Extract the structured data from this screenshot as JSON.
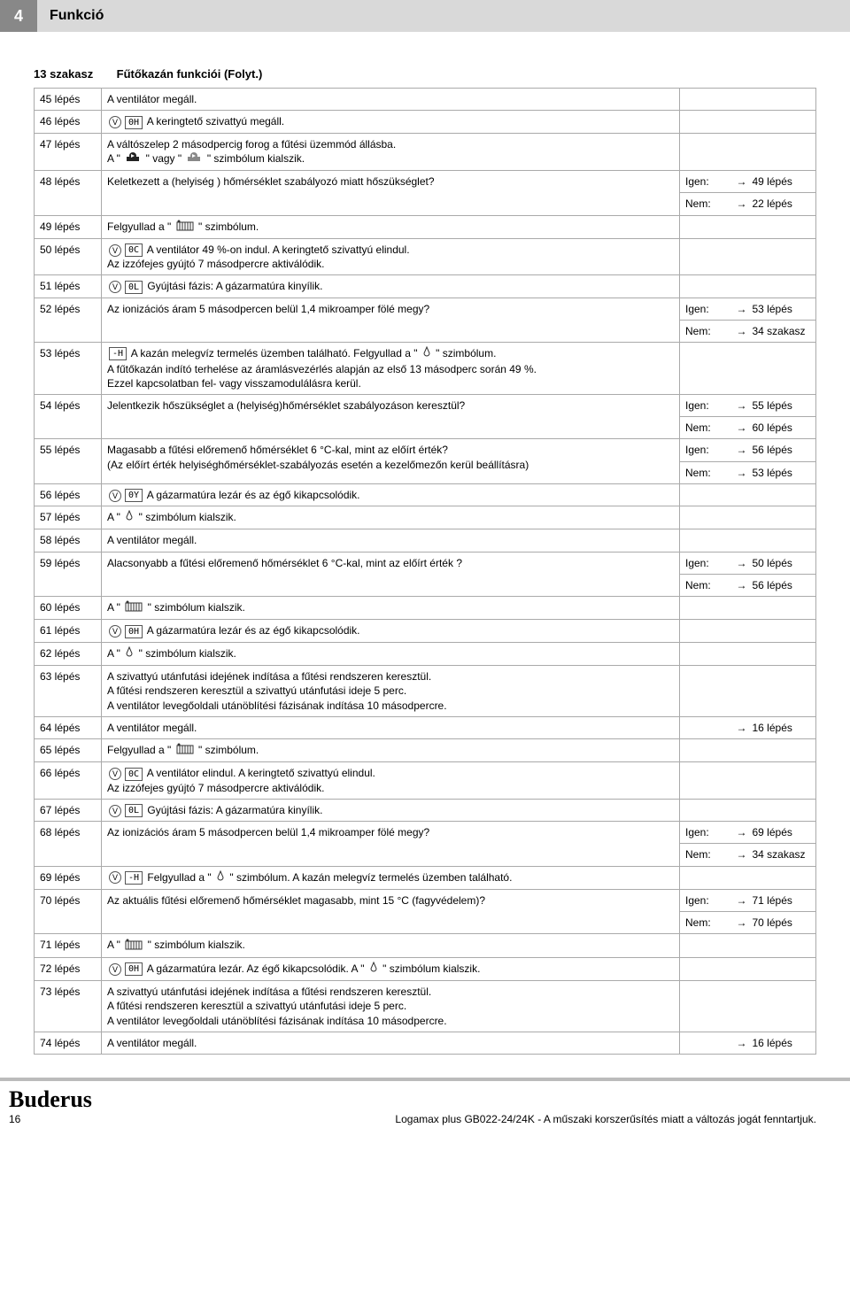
{
  "header": {
    "chapter_num": "4",
    "chapter_title": "Funkció"
  },
  "section": {
    "number": "13 szakasz",
    "title": "Fűtőkazán funkciói (Folyt.)"
  },
  "labels": {
    "yes": "Igen:",
    "no": "Nem:",
    "arrow": "→"
  },
  "symbols": {
    "fan": "V̂",
    "code_0H": "0H",
    "code_0C": "0C",
    "code_0L": "0L",
    "code_0Y": "0Y",
    "code_mH": "-H",
    "pump_black": "pump",
    "pump_grey": "pump",
    "radiator": "rad",
    "drop": "◊"
  },
  "rows": [
    {
      "step": "45 lépés",
      "symbols": [],
      "text": "A ventilátor megáll."
    },
    {
      "step": "46 lépés",
      "symbols": [
        "fan",
        "0H"
      ],
      "text": "A keringtető szivattyú megáll."
    },
    {
      "step": "47 lépés",
      "symbols": [],
      "text": "A váltószelep 2 másodpercig forog a fűtési üzemmód állásba.\nA \" [pump1] \" vagy \" [pump2] \" szimbólum kialszik."
    },
    {
      "step": "48 lépés",
      "symbols": [],
      "text": "Keletkezett a (helyiség ) hőmérséklet szabályozó miatt hőszükséglet?",
      "results": [
        [
          "Igen:",
          "49 lépés"
        ],
        [
          "Nem:",
          "22 lépés"
        ]
      ]
    },
    {
      "step": "49 lépés",
      "symbols": [],
      "text": "Felgyullad a \" [rad] \" szimbólum."
    },
    {
      "step": "50 lépés",
      "symbols": [
        "fan",
        "0C"
      ],
      "text": "A ventilátor 49 %-on indul. A keringtető szivattyú elindul.\nAz izzófejes gyújtó 7 másodpercre aktiválódik."
    },
    {
      "step": "51 lépés",
      "symbols": [
        "fan",
        "0L"
      ],
      "text": "Gyújtási fázis: A gázarmatúra kinyílik."
    },
    {
      "step": "52 lépés",
      "symbols": [],
      "text": "Az ionizációs áram 5 másodpercen belül 1,4 mikroamper fölé megy?",
      "results": [
        [
          "Igen:",
          "53 lépés"
        ],
        [
          "Nem:",
          "34 szakasz"
        ]
      ]
    },
    {
      "step": "53 lépés",
      "symbols": [
        "-H"
      ],
      "text": "A kazán melegvíz termelés üzemben található. Felgyullad a \" [drop] \" szimbólum.\nA fűtőkazán indító terhelése az áramlásvezérlés alapján az első 13 másodperc során 49 %.\nEzzel kapcsolatban fel- vagy visszamodulálásra kerül."
    },
    {
      "step": "54 lépés",
      "symbols": [],
      "text": "Jelentkezik hőszükséglet a (helyiség)hőmérséklet szabályozáson keresztül?",
      "results": [
        [
          "Igen:",
          "55 lépés"
        ],
        [
          "Nem:",
          "60 lépés"
        ]
      ]
    },
    {
      "step": "55 lépés",
      "symbols": [],
      "text": "Magasabb a fűtési előremenő hőmérséklet 6 °C-kal, mint az előírt érték?\n(Az előírt érték helyiséghőmérséklet-szabályozás esetén a kezelőmezőn kerül beállításra)",
      "results": [
        [
          "Igen:",
          "56 lépés"
        ],
        [
          "Nem:",
          "53 lépés"
        ]
      ]
    },
    {
      "step": "56 lépés",
      "symbols": [
        "fan",
        "0Y"
      ],
      "text": "A gázarmatúra lezár és az égő kikapcsolódik."
    },
    {
      "step": "57 lépés",
      "symbols": [],
      "text": "A \" [drop] \" szimbólum kialszik."
    },
    {
      "step": "58 lépés",
      "symbols": [],
      "text": "A ventilátor megáll."
    },
    {
      "step": "59 lépés",
      "symbols": [],
      "text": "Alacsonyabb a fűtési előremenő hőmérséklet 6 °C-kal, mint az előírt érték ?",
      "results": [
        [
          "Igen:",
          "50 lépés"
        ],
        [
          "Nem:",
          "56 lépés"
        ]
      ]
    },
    {
      "step": "60 lépés",
      "symbols": [],
      "text": "A \" [rad] \" szimbólum kialszik."
    },
    {
      "step": "61 lépés",
      "symbols": [
        "fan",
        "0H"
      ],
      "text": "A gázarmatúra lezár és az égő kikapcsolódik."
    },
    {
      "step": "62 lépés",
      "symbols": [],
      "text": "A \" [drop] \" szimbólum kialszik."
    },
    {
      "step": "63 lépés",
      "symbols": [],
      "text": "A szivattyú utánfutási idejének indítása a fűtési rendszeren keresztül.\nA fűtési rendszeren keresztül a szivattyú utánfutási ideje 5 perc.\nA ventilátor levegőoldali utánöblítési fázisának indítása 10 másodpercre."
    },
    {
      "step": "64 lépés",
      "symbols": [],
      "text": "A ventilátor megáll.",
      "results": [
        [
          "",
          "16 lépés"
        ]
      ]
    },
    {
      "step": "65 lépés",
      "symbols": [],
      "text": "Felgyullad a \" [rad] \" szimbólum."
    },
    {
      "step": "66 lépés",
      "symbols": [
        "fan",
        "0C"
      ],
      "text": "A ventilátor elindul. A keringtető szivattyú elindul.\nAz izzófejes gyújtó 7 másodpercre aktiválódik."
    },
    {
      "step": "67 lépés",
      "symbols": [
        "fan",
        "0L"
      ],
      "text": "Gyújtási fázis: A gázarmatúra kinyílik."
    },
    {
      "step": "68 lépés",
      "symbols": [],
      "text": "Az ionizációs áram 5 másodpercen belül 1,4 mikroamper fölé megy?",
      "results": [
        [
          "Igen:",
          "69 lépés"
        ],
        [
          "Nem:",
          "34 szakasz"
        ]
      ]
    },
    {
      "step": "69 lépés",
      "symbols": [
        "fan",
        "-H"
      ],
      "text": "Felgyullad a \" [drop] \" szimbólum. A kazán melegvíz termelés üzemben található."
    },
    {
      "step": "70 lépés",
      "symbols": [],
      "text": "Az aktuális fűtési előremenő hőmérséklet magasabb, mint 15 °C (fagyvédelem)?",
      "results": [
        [
          "Igen:",
          "71 lépés"
        ],
        [
          "Nem:",
          "70 lépés"
        ]
      ]
    },
    {
      "step": "71 lépés",
      "symbols": [],
      "text": "A \" [rad] \" szimbólum kialszik."
    },
    {
      "step": "72 lépés",
      "symbols": [
        "fan",
        "0H"
      ],
      "text": "A gázarmatúra lezár. Az égő kikapcsolódik. A \" [drop] \" szimbólum kialszik."
    },
    {
      "step": "73 lépés",
      "symbols": [],
      "text": "A szivattyú utánfutási idejének indítása a fűtési rendszeren keresztül.\nA fűtési rendszeren keresztül a szivattyú utánfutási ideje 5 perc.\nA ventilátor levegőoldali utánöblítési fázisának indítása 10 másodpercre."
    },
    {
      "step": "74 lépés",
      "symbols": [],
      "text": "A ventilátor megáll.",
      "results": [
        [
          "",
          "16 lépés"
        ]
      ]
    }
  ],
  "footer": {
    "logo": "Buderus",
    "page_num": "16",
    "doc_line": "Logamax plus GB022-24/24K - A műszaki korszerűsítés miatt a változás jogát fenntartjuk."
  }
}
